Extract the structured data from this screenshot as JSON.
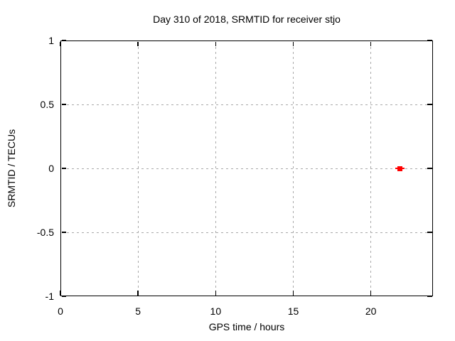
{
  "title": "Day 310 of 2018, SRMTID for receiver stjo",
  "axes": {
    "x_label": "GPS time / hours",
    "y_label": "SRMTID / TECUs"
  },
  "colors": {
    "background": "#ffffff",
    "plot_border": "#000000",
    "grid": "#a9a9a9",
    "text": "#000000",
    "point": "#ff0000"
  },
  "chart_data": {
    "type": "scatter",
    "title": "Day 310 of 2018, SRMTID for receiver stjo",
    "xlabel": "GPS time / hours",
    "ylabel": "SRMTID / TECUs",
    "xlim": [
      0,
      24
    ],
    "ylim": [
      -1,
      1
    ],
    "x_ticks": [
      0,
      5,
      10,
      15,
      20
    ],
    "x_tick_labels": [
      "0",
      "5",
      "10",
      "15",
      "20"
    ],
    "y_ticks": [
      1,
      0.5,
      0,
      -0.5,
      -1
    ],
    "y_tick_labels": [
      "1",
      "0.5",
      "0",
      "-0.5",
      "-1"
    ],
    "grid": true,
    "grid_style": "dashed",
    "legend": false,
    "series": [
      {
        "name": "SRMTID",
        "color": "#ff0000",
        "marker": "filled-square-with-x-errorbar",
        "points": [
          {
            "x": 21.85,
            "y": 0,
            "xerr": 0.3
          }
        ]
      }
    ]
  }
}
